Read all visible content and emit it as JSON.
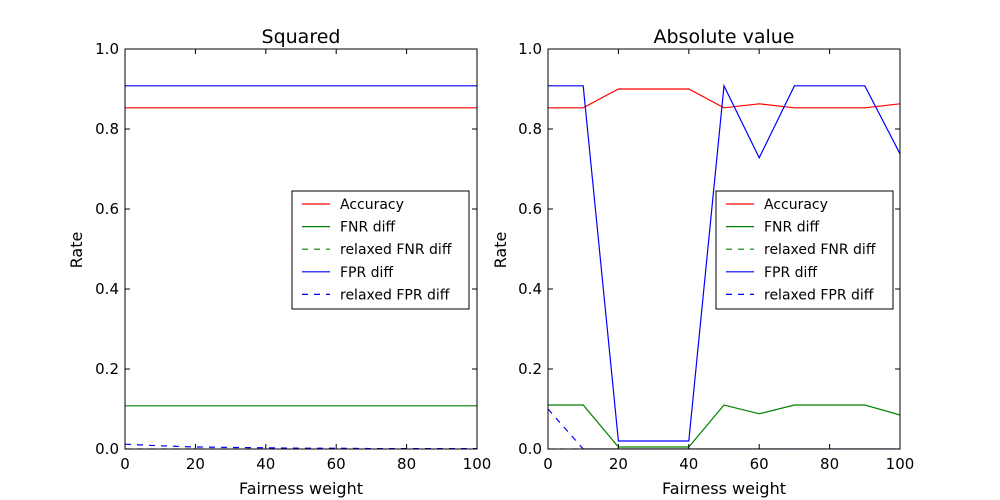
{
  "chart_data": [
    {
      "type": "line",
      "title": "Squared",
      "xlabel": "Fairness weight",
      "ylabel": "Rate",
      "xlim": [
        0,
        100
      ],
      "ylim": [
        0,
        1.0
      ],
      "xticks": [
        "0",
        "20",
        "40",
        "60",
        "80",
        "100"
      ],
      "yticks": [
        "0.0",
        "0.2",
        "0.4",
        "0.6",
        "0.8",
        "1.0"
      ],
      "grid": false,
      "legend_position": "center-right",
      "x": [
        0,
        10,
        20,
        30,
        40,
        50,
        60,
        70,
        80,
        90,
        100
      ],
      "series": [
        {
          "name": "Accuracy",
          "color": "#ff0000",
          "dash": "solid",
          "values": [
            0.853,
            0.853,
            0.853,
            0.853,
            0.853,
            0.853,
            0.853,
            0.853,
            0.853,
            0.853,
            0.853
          ]
        },
        {
          "name": "FNR diff",
          "color": "#008000",
          "dash": "solid",
          "values": [
            0.108,
            0.108,
            0.108,
            0.108,
            0.108,
            0.108,
            0.108,
            0.108,
            0.108,
            0.108,
            0.108
          ]
        },
        {
          "name": "relaxed FNR diff",
          "color": "#008000",
          "dash": "dashed",
          "values": [
            0.0,
            0.0,
            0.0,
            0.0,
            0.0,
            0.0,
            0.0,
            0.0,
            0.0,
            0.0,
            0.0
          ]
        },
        {
          "name": "FPR diff",
          "color": "#0000ff",
          "dash": "solid",
          "values": [
            0.908,
            0.908,
            0.908,
            0.908,
            0.908,
            0.908,
            0.908,
            0.908,
            0.908,
            0.908,
            0.908
          ]
        },
        {
          "name": "relaxed FPR diff",
          "color": "#0000ff",
          "dash": "dashed",
          "values": [
            0.012,
            0.008,
            0.005,
            0.004,
            0.003,
            0.002,
            0.002,
            0.001,
            0.001,
            0.001,
            0.001
          ]
        }
      ]
    },
    {
      "type": "line",
      "title": "Absolute value",
      "xlabel": "Fairness weight",
      "ylabel": "Rate",
      "xlim": [
        0,
        100
      ],
      "ylim": [
        0,
        1.0
      ],
      "xticks": [
        "0",
        "20",
        "40",
        "60",
        "80",
        "100"
      ],
      "yticks": [
        "0.0",
        "0.2",
        "0.4",
        "0.6",
        "0.8",
        "1.0"
      ],
      "grid": false,
      "legend_position": "center-right",
      "x": [
        0,
        10,
        20,
        30,
        40,
        50,
        60,
        70,
        80,
        90,
        100
      ],
      "series": [
        {
          "name": "Accuracy",
          "color": "#ff0000",
          "dash": "solid",
          "values": [
            0.853,
            0.853,
            0.9,
            0.9,
            0.9,
            0.853,
            0.863,
            0.853,
            0.853,
            0.853,
            0.863
          ]
        },
        {
          "name": "FNR diff",
          "color": "#008000",
          "dash": "solid",
          "values": [
            0.11,
            0.11,
            0.005,
            0.005,
            0.005,
            0.11,
            0.088,
            0.11,
            0.11,
            0.11,
            0.085
          ]
        },
        {
          "name": "relaxed FNR diff",
          "color": "#008000",
          "dash": "dashed",
          "values": [
            0.0,
            0.0,
            0.0,
            0.0,
            0.0,
            0.0,
            0.0,
            0.0,
            0.0,
            0.0,
            0.0
          ]
        },
        {
          "name": "FPR diff",
          "color": "#0000ff",
          "dash": "solid",
          "values": [
            0.908,
            0.908,
            0.02,
            0.02,
            0.02,
            0.908,
            0.728,
            0.908,
            0.908,
            0.908,
            0.738
          ]
        },
        {
          "name": "relaxed FPR diff",
          "color": "#0000ff",
          "dash": "dashed",
          "values": [
            0.1,
            0.0,
            0.0,
            0.0,
            0.0,
            0.0,
            0.0,
            0.0,
            0.0,
            0.0,
            0.0
          ]
        }
      ]
    }
  ]
}
